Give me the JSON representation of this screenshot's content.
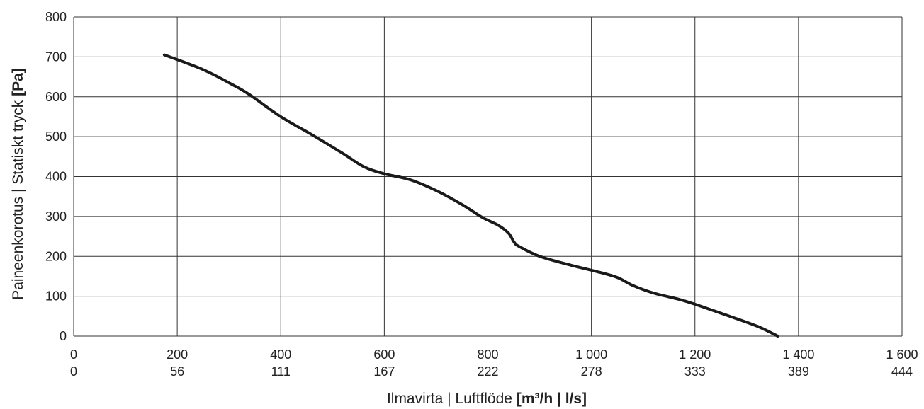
{
  "chart_data": {
    "type": "line",
    "xlabel": "Ilmavirta | Luftflöde",
    "xlabel_unit": "[m³/h | l/s]",
    "ylabel": "Paineenkorotus | Statiskt tryck",
    "ylabel_unit": "[Pa]",
    "xlim": [
      0,
      1600
    ],
    "ylim": [
      0,
      800
    ],
    "grid": true,
    "x_ticks": [
      0,
      200,
      400,
      600,
      800,
      1000,
      1200,
      1400,
      1600
    ],
    "x_tick_labels": [
      "0",
      "200",
      "400",
      "600",
      "800",
      "1 000",
      "1 200",
      "1 400",
      "1 600"
    ],
    "x_tick_labels_secondary": [
      "0",
      "56",
      "111",
      "167",
      "222",
      "278",
      "333",
      "389",
      "444"
    ],
    "y_ticks": [
      0,
      100,
      200,
      300,
      400,
      500,
      600,
      700,
      800
    ],
    "y_tick_labels": [
      "0",
      "100",
      "200",
      "300",
      "400",
      "500",
      "600",
      "700",
      "800"
    ],
    "series": [
      {
        "color": "#1a1a1a",
        "x": [
          175,
          250,
          310,
          340,
          400,
          460,
          520,
          560,
          600,
          650,
          700,
          750,
          790,
          820,
          840,
          850,
          860,
          900,
          960,
          1010,
          1050,
          1080,
          1120,
          1170,
          1200,
          1260,
          1320,
          1360
        ],
        "y": [
          705,
          668,
          628,
          605,
          550,
          505,
          458,
          425,
          407,
          392,
          365,
          330,
          297,
          278,
          258,
          237,
          225,
          200,
          178,
          162,
          147,
          127,
          108,
          92,
          80,
          53,
          25,
          0
        ]
      }
    ]
  }
}
